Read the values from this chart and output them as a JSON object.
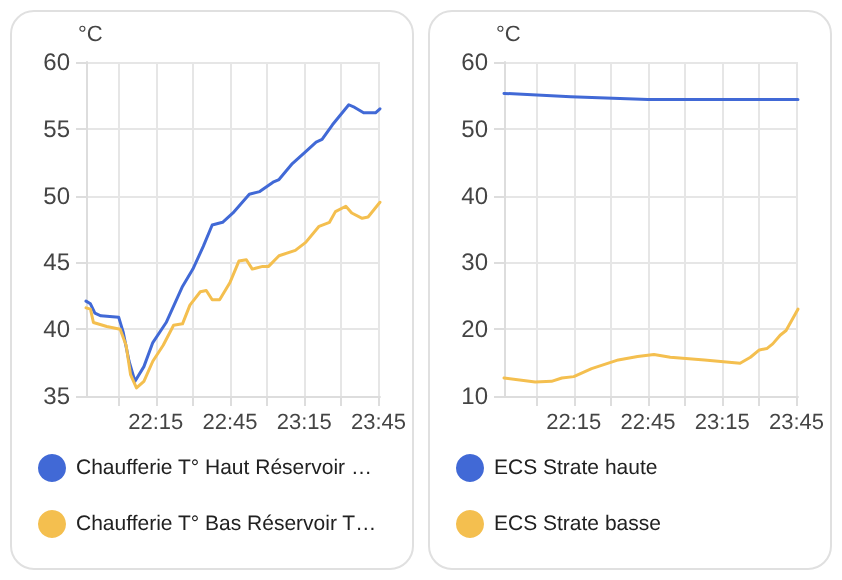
{
  "chart_data": [
    {
      "type": "line",
      "ylabel": "°C",
      "xlim": [
        21.78,
        23.76
      ],
      "ylim": [
        35,
        60
      ],
      "yticks": [
        35,
        40,
        45,
        50,
        55,
        60
      ],
      "xticks": [
        {
          "value": 22,
          "label": null
        },
        {
          "value": 22.25,
          "label": "22:15"
        },
        {
          "value": 22.5,
          "label": null
        },
        {
          "value": 22.75,
          "label": "22:45"
        },
        {
          "value": 23,
          "label": null
        },
        {
          "value": 23.25,
          "label": "23:15"
        },
        {
          "value": 23.5,
          "label": null
        },
        {
          "value": 23.75,
          "label": "23:45"
        }
      ],
      "grid": true,
      "legend": "bottom",
      "marker": "none",
      "line_style": "solid",
      "series": [
        {
          "name": "Chaufferie T° Haut Réservoir …",
          "color": "#4169d6",
          "x": [
            21.78,
            21.81,
            21.84,
            21.88,
            22.0,
            22.03,
            22.07,
            22.11,
            22.17,
            22.23,
            22.32,
            22.43,
            22.5,
            22.57,
            22.63,
            22.7,
            22.77,
            22.88,
            22.95,
            23.04,
            23.08,
            23.17,
            23.26,
            23.33,
            23.37,
            23.44,
            23.55,
            23.59,
            23.65,
            23.73,
            23.76
          ],
          "values": [
            42.1,
            41.9,
            41.2,
            41.0,
            40.9,
            39.8,
            37.6,
            36.1,
            37.2,
            39.0,
            40.5,
            43.2,
            44.5,
            46.2,
            47.8,
            48.0,
            48.7,
            50.1,
            50.3,
            51.0,
            51.2,
            52.4,
            53.3,
            54.0,
            54.2,
            55.3,
            56.8,
            56.6,
            56.2,
            56.2,
            56.5
          ]
        },
        {
          "name": "Chaufferie T° Bas Réservoir T…",
          "color": "#f4bf4f",
          "x": [
            21.78,
            21.81,
            21.83,
            21.92,
            22.01,
            22.05,
            22.08,
            22.12,
            22.17,
            22.23,
            22.3,
            22.37,
            22.43,
            22.48,
            22.55,
            22.59,
            22.63,
            22.68,
            22.75,
            22.81,
            22.86,
            22.9,
            22.97,
            23.01,
            23.08,
            23.19,
            23.26,
            23.35,
            23.42,
            23.46,
            23.53,
            23.57,
            23.64,
            23.68,
            23.76
          ],
          "values": [
            41.6,
            41.5,
            40.5,
            40.2,
            40.0,
            38.8,
            36.6,
            35.6,
            36.1,
            37.6,
            38.8,
            40.3,
            40.4,
            41.8,
            42.8,
            42.9,
            42.2,
            42.2,
            43.5,
            45.1,
            45.2,
            44.5,
            44.7,
            44.7,
            45.5,
            45.9,
            46.5,
            47.7,
            48.0,
            48.8,
            49.2,
            48.7,
            48.3,
            48.4,
            49.5
          ]
        }
      ]
    },
    {
      "type": "line",
      "ylabel": "°C",
      "xlim": [
        21.78,
        23.76
      ],
      "ylim": [
        10,
        60
      ],
      "yticks": [
        10,
        20,
        30,
        40,
        50,
        60
      ],
      "xticks": [
        {
          "value": 22,
          "label": null
        },
        {
          "value": 22.25,
          "label": "22:15"
        },
        {
          "value": 22.5,
          "label": null
        },
        {
          "value": 22.75,
          "label": "22:45"
        },
        {
          "value": 23,
          "label": null
        },
        {
          "value": 23.25,
          "label": "23:15"
        },
        {
          "value": 23.5,
          "label": null
        },
        {
          "value": 23.75,
          "label": "23:45"
        }
      ],
      "grid": true,
      "legend": "bottom",
      "marker": "none",
      "line_style": "solid",
      "series": [
        {
          "name": "ECS Strate haute",
          "color": "#4169d6",
          "x": [
            21.78,
            22.23,
            22.75,
            23.76
          ],
          "values": [
            55.3,
            54.8,
            54.4,
            54.4
          ]
        },
        {
          "name": "ECS Strate basse",
          "color": "#f4bf4f",
          "x": [
            21.78,
            21.99,
            22.1,
            22.17,
            22.25,
            22.37,
            22.55,
            22.68,
            22.79,
            22.9,
            23.13,
            23.37,
            23.44,
            23.5,
            23.55,
            23.59,
            23.64,
            23.68,
            23.76
          ],
          "values": [
            12.7,
            12.1,
            12.2,
            12.7,
            12.9,
            14.1,
            15.4,
            15.9,
            16.2,
            15.8,
            15.4,
            14.9,
            15.8,
            16.9,
            17.1,
            17.8,
            19.1,
            19.8,
            23.0
          ]
        }
      ]
    }
  ]
}
